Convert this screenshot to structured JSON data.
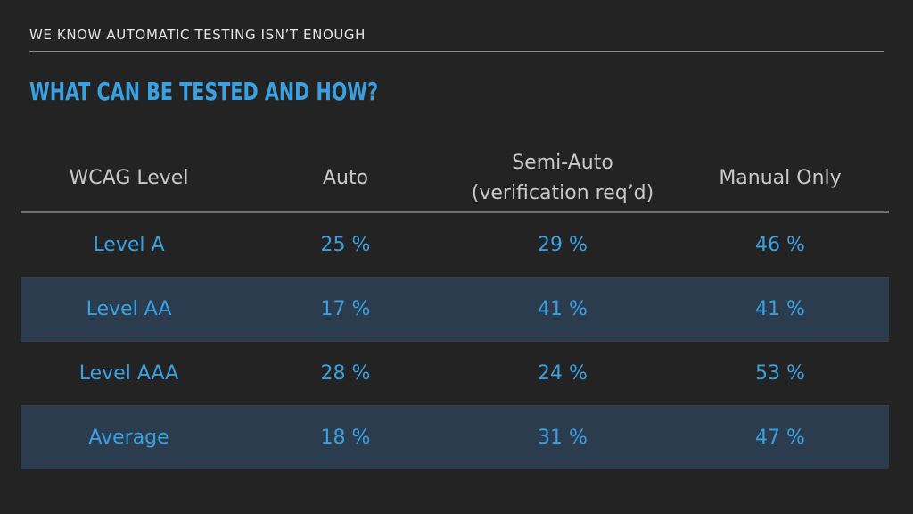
{
  "header": {
    "kicker": "WE KNOW AUTOMATIC TESTING ISN’T ENOUGH",
    "title": "WHAT CAN BE TESTED AND HOW?"
  },
  "table": {
    "columns": [
      {
        "line1": "WCAG Level",
        "line2": ""
      },
      {
        "line1": "Auto",
        "line2": ""
      },
      {
        "line1": "Semi-Auto",
        "line2": "(verification req’d)"
      },
      {
        "line1": "Manual Only",
        "line2": ""
      }
    ],
    "rows": [
      {
        "level": "Level A",
        "auto": "25 %",
        "semi": "29 %",
        "manual": "46 %"
      },
      {
        "level": "Level AA",
        "auto": "17 %",
        "semi": "41 %",
        "manual": "41 %"
      },
      {
        "level": "Level AAA",
        "auto": "28 %",
        "semi": "24 %",
        "manual": "53 %"
      },
      {
        "level": "Average",
        "auto": "18 %",
        "semi": "31 %",
        "manual": "47 %"
      }
    ]
  },
  "colors": {
    "background": "#232323",
    "accent": "#3ba0e0",
    "header_text": "#c9c9c9",
    "shaded_row": "#2a3c4e"
  }
}
